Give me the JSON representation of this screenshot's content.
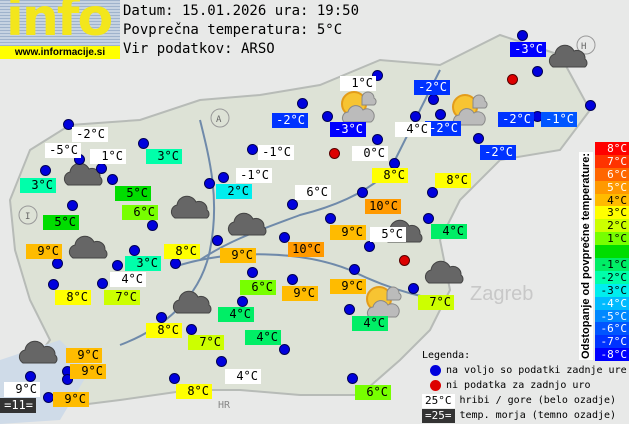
{
  "header": {
    "logo": "info",
    "url": "www.informacije.si",
    "date_line": "Datum: 15.01.2026 ura: 19:50",
    "avg_line": "Povprečna temperatura: 5°C",
    "source_line": "Vir podatkov: ARSO"
  },
  "average_temp": 5,
  "map_labels": {
    "country_a": "A",
    "country_h": "H",
    "country_i": "I",
    "country_hr": "HR",
    "city_zagreb": "Zagreb"
  },
  "stations": [
    {
      "t": "-3°C",
      "v": -3
    },
    {
      "t": "-2°C",
      "v": -2
    },
    {
      "t": "-2°C",
      "v": -2
    },
    {
      "t": "-2°C",
      "v": -2
    },
    {
      "t": "-1°C",
      "v": -1
    },
    {
      "t": "-3°C",
      "v": -3
    },
    {
      "t": "-2°C",
      "v": -2
    },
    {
      "t": "-2°C",
      "v": -2
    },
    {
      "t": "1°C",
      "v": 1,
      "mountain": true
    },
    {
      "t": "4°C",
      "v": 4,
      "mountain": true
    },
    {
      "t": "0°C",
      "v": 0,
      "mountain": true
    },
    {
      "t": "-2°C",
      "v": -2,
      "mountain": true
    },
    {
      "t": "-5°C",
      "v": -5,
      "mountain": true
    },
    {
      "t": "1°C",
      "v": 1,
      "mountain": true
    },
    {
      "t": "3°C",
      "v": 3
    },
    {
      "t": "-1°C",
      "v": -1,
      "mountain": true
    },
    {
      "t": "-1°C",
      "v": -1,
      "mountain": true
    },
    {
      "t": "3°C",
      "v": 3
    },
    {
      "t": "5°C",
      "v": 5
    },
    {
      "t": "2°C",
      "v": 2
    },
    {
      "t": "6°C",
      "v": 6,
      "mountain": true
    },
    {
      "t": "8°C",
      "v": 8
    },
    {
      "t": "8°C",
      "v": 8
    },
    {
      "t": "6°C",
      "v": 6
    },
    {
      "t": "5°C",
      "v": 5
    },
    {
      "t": "10°C",
      "v": 10
    },
    {
      "t": "9°C",
      "v": 9
    },
    {
      "t": "9°C",
      "v": 9
    },
    {
      "t": "5°C",
      "v": 5,
      "mountain": true
    },
    {
      "t": "4°C",
      "v": 4
    },
    {
      "t": "8°C",
      "v": 8
    },
    {
      "t": "3°C",
      "v": 3
    },
    {
      "t": "9°C",
      "v": 9
    },
    {
      "t": "10°C",
      "v": 10
    },
    {
      "t": "4°C",
      "v": 4,
      "mountain": true
    },
    {
      "t": "6°C",
      "v": 6
    },
    {
      "t": "9°C",
      "v": 9
    },
    {
      "t": "9°C",
      "v": 9
    },
    {
      "t": "8°C",
      "v": 8
    },
    {
      "t": "7°C",
      "v": 7
    },
    {
      "t": "4°C",
      "v": 4
    },
    {
      "t": "4°C",
      "v": 4
    },
    {
      "t": "7°C",
      "v": 7
    },
    {
      "t": "8°C",
      "v": 8
    },
    {
      "t": "7°C",
      "v": 7
    },
    {
      "t": "4°C",
      "v": 4
    },
    {
      "t": "9°C",
      "v": 9
    },
    {
      "t": "9°C",
      "v": 9
    },
    {
      "t": "9°C",
      "v": 9,
      "mountain": true
    },
    {
      "t": "9°C",
      "v": 9
    },
    {
      "t": "=11=",
      "v": 11,
      "sea": true
    },
    {
      "t": "8°C",
      "v": 8
    },
    {
      "t": "4°C",
      "v": 4,
      "mountain": true
    },
    {
      "t": "6°C",
      "v": 6
    }
  ],
  "scale": {
    "title": "Odstopanje od povprečne temperature:",
    "rows": [
      {
        "label": "8°C",
        "color": "#ff0000"
      },
      {
        "label": "7°C",
        "color": "#ff3300"
      },
      {
        "label": "6°C",
        "color": "#ff6600"
      },
      {
        "label": "5°C",
        "color": "#ff9900"
      },
      {
        "label": "4°C",
        "color": "#ffbb00"
      },
      {
        "label": "3°C",
        "color": "#ffff00"
      },
      {
        "label": "2°C",
        "color": "#ccff00"
      },
      {
        "label": "1°C",
        "color": "#77ff00"
      },
      {
        "label": "",
        "color": "#00dd00"
      },
      {
        "label": "-1°C",
        "color": "#00ee66"
      },
      {
        "label": "-2°C",
        "color": "#00ffaa"
      },
      {
        "label": "-3°C",
        "color": "#00eeee"
      },
      {
        "label": "-4°C",
        "color": "#00bbff"
      },
      {
        "label": "-5°C",
        "color": "#0088ff"
      },
      {
        "label": "-6°C",
        "color": "#0055ff"
      },
      {
        "label": "-7°C",
        "color": "#0033ff"
      },
      {
        "label": "-8°C",
        "color": "#0000ff"
      }
    ]
  },
  "legend": {
    "title": "Legenda:",
    "available": "na voljo so podatki zadnje ure",
    "missing": "ni podatka za zadnjo uro",
    "mountain_sample": "25°C",
    "mountain": "hribi / gore (belo ozadje)",
    "sea_sample": "=25=",
    "sea": "temp. morja (temno ozadje)"
  },
  "colors": {
    "dot_available": "#0000dd",
    "dot_missing": "#dd0000",
    "mountain_bg": "#ffffff",
    "sea_bg": "#333333"
  }
}
